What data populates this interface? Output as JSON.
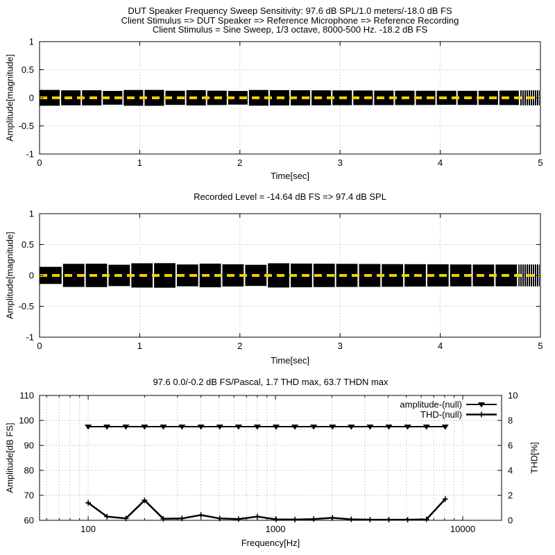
{
  "page": {
    "colors": {
      "foreground": "#000000",
      "background": "#ffffff",
      "grid": "#a8a8a8",
      "zero_line_yellow": "#f0d000"
    }
  },
  "chart_data": [
    {
      "type": "waveform",
      "title_lines": [
        "DUT Speaker Frequency Sweep Sensitivity: 97.6 dB SPL/1.0 meters/-18.0 dB FS",
        "Client Stimulus => DUT Speaker => Reference Microphone => Reference Recording",
        "Client Stimulus = Sine Sweep, 1/3 octave, 8000-500 Hz. -18.2 dB FS"
      ],
      "xlabel": "Time[sec]",
      "ylabel": "Amplitude[magnitude]",
      "xlim": [
        0,
        5
      ],
      "ylim": [
        -1,
        1
      ],
      "xticks": [
        0,
        1,
        2,
        3,
        4,
        5
      ],
      "yticks": [
        1,
        0.5,
        0,
        -0.5,
        -1
      ],
      "waveform": {
        "description": "1/3-octave stepped sine sweep bursts, dense black envelope",
        "duration_sec": 5,
        "envelope_peak": 0.135,
        "tone_count": 24,
        "first_burst_scale": 1.0,
        "zero_line_style": "dashed-yellow"
      }
    },
    {
      "type": "waveform",
      "title": "Recorded Level = -14.64 dB FS  => 97.4 dB SPL",
      "xlabel": "Time[sec]",
      "ylabel": "Amplitude[magnitude]",
      "xlim": [
        0,
        5
      ],
      "ylim": [
        -1,
        1
      ],
      "xticks": [
        0,
        1,
        2,
        3,
        4,
        5
      ],
      "yticks": [
        1,
        0.5,
        0,
        -0.5,
        -1
      ],
      "waveform": {
        "description": "recorded sweep, dense black envelope",
        "duration_sec": 5,
        "envelope_peak": 0.19,
        "tone_count": 22,
        "first_burst_scale": 0.7,
        "zero_line_style": "dashed-yellow"
      }
    },
    {
      "type": "line",
      "title": "97.6 0.0/-0.2 dB FS/Pascal, 1.7 THD max, 63.7 THDN max",
      "xlabel": "Frequency[Hz]",
      "ylabel_left": "Amplitude[dB FS]",
      "ylabel_right": "THD[%]",
      "x_scale": "log",
      "xlim": [
        55,
        16120
      ],
      "ylim_left": [
        60,
        110
      ],
      "ylim_right": [
        0,
        10
      ],
      "xticks": [
        100,
        1000,
        10000
      ],
      "yticks_left": [
        60,
        70,
        80,
        90,
        100,
        110
      ],
      "yticks_right": [
        0,
        2,
        4,
        6,
        8,
        10
      ],
      "grid": "major-and-minor-log",
      "legend_position": "top-right-inside",
      "series": [
        {
          "name": "amplitude-(null)",
          "axis": "left",
          "marker": "triangle-down",
          "x": [
            100,
            126,
            159,
            200,
            252,
            317,
            400,
            504,
            635,
            800,
            1008,
            1270,
            1600,
            2016,
            2540,
            3200,
            4032,
            5080,
            6400,
            8063
          ],
          "y": [
            97.5,
            97.5,
            97.5,
            97.5,
            97.5,
            97.5,
            97.5,
            97.5,
            97.5,
            97.5,
            97.5,
            97.5,
            97.5,
            97.5,
            97.5,
            97.5,
            97.5,
            97.5,
            97.5,
            97.5
          ]
        },
        {
          "name": "THD-(null)",
          "axis": "right",
          "marker": "plus",
          "x": [
            100,
            126,
            159,
            200,
            252,
            317,
            400,
            504,
            635,
            800,
            1008,
            1270,
            1600,
            2016,
            2540,
            3200,
            4032,
            5080,
            6400,
            8063
          ],
          "y": [
            1.4,
            0.3,
            0.15,
            1.6,
            0.12,
            0.15,
            0.42,
            0.15,
            0.1,
            0.3,
            0.08,
            0.06,
            0.1,
            0.2,
            0.08,
            0.05,
            0.05,
            0.05,
            0.08,
            1.7
          ]
        }
      ]
    }
  ]
}
